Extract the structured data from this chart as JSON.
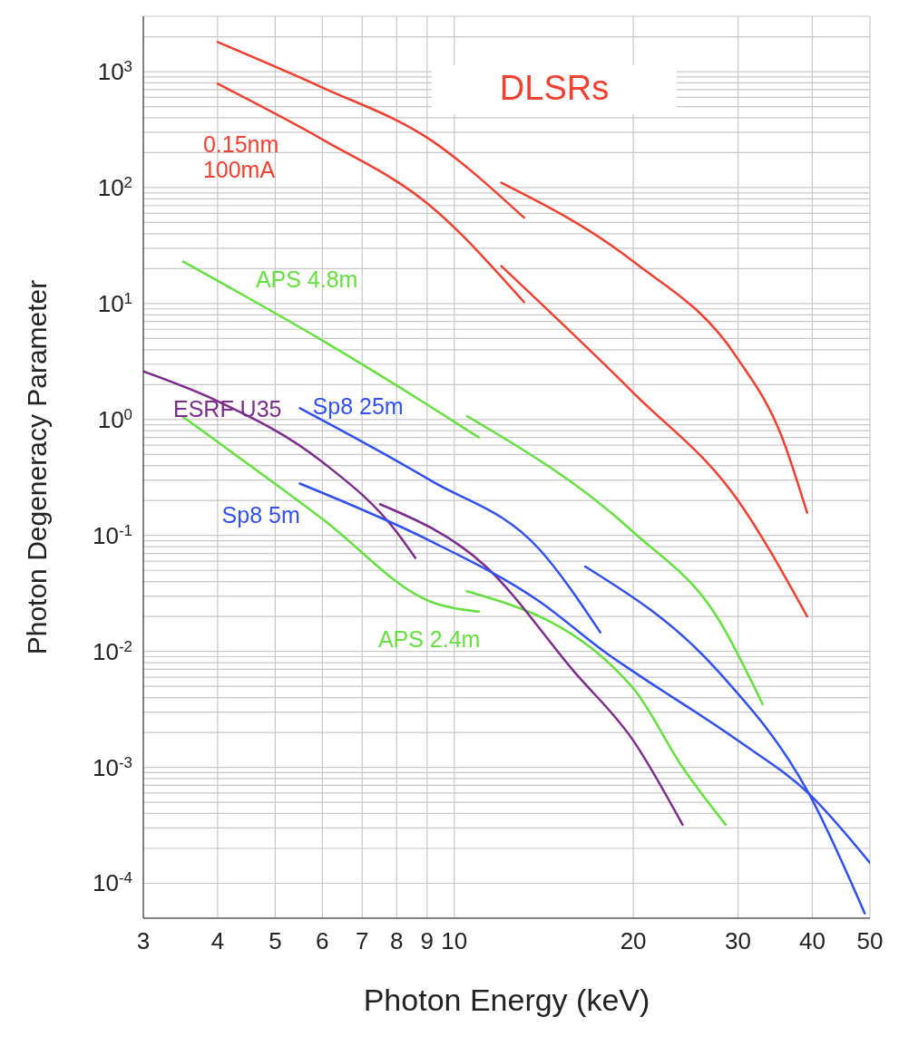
{
  "chart_data": {
    "type": "line",
    "title": "DLSRs",
    "xlabel": "Photon Energy (keV)",
    "ylabel": "Photon Degeneracy Parameter",
    "log": "xy",
    "grid": true,
    "legend": false,
    "marker": "none",
    "line_style": "solid",
    "xlim": [
      3,
      50
    ],
    "xticks": [
      3,
      4,
      5,
      6,
      7,
      8,
      9,
      10,
      20,
      30,
      40,
      50
    ],
    "ylim": [
      5e-05,
      3000
    ],
    "yticks": [
      {
        "value": 0.0001,
        "label": "10$^{-4}$"
      },
      {
        "value": 0.0002,
        "label": null
      },
      {
        "value": 0.0003,
        "label": null
      },
      {
        "value": 0.0004,
        "label": null
      },
      {
        "value": 0.0005,
        "label": null
      },
      {
        "value": 0.0006,
        "label": null
      },
      {
        "value": 0.0007,
        "label": null
      },
      {
        "value": 0.0008,
        "label": null
      },
      {
        "value": 0.0009,
        "label": null
      },
      {
        "value": 0.001,
        "label": "10$^{-3}$"
      },
      {
        "value": 0.002,
        "label": null
      },
      {
        "value": 0.003,
        "label": null
      },
      {
        "value": 0.004,
        "label": null
      },
      {
        "value": 0.005,
        "label": null
      },
      {
        "value": 0.006,
        "label": null
      },
      {
        "value": 0.007,
        "label": null
      },
      {
        "value": 0.008,
        "label": null
      },
      {
        "value": 0.009,
        "label": null
      },
      {
        "value": 0.01,
        "label": "10$^{-2}$"
      },
      {
        "value": 0.02,
        "label": null
      },
      {
        "value": 0.03,
        "label": null
      },
      {
        "value": 0.04,
        "label": null
      },
      {
        "value": 0.05,
        "label": null
      },
      {
        "value": 0.06,
        "label": null
      },
      {
        "value": 0.07,
        "label": null
      },
      {
        "value": 0.08,
        "label": null
      },
      {
        "value": 0.09,
        "label": null
      },
      {
        "value": 0.1,
        "label": "10$^{-1}$"
      },
      {
        "value": 0.2,
        "label": null
      },
      {
        "value": 0.3,
        "label": null
      },
      {
        "value": 0.4,
        "label": null
      },
      {
        "value": 0.5,
        "label": null
      },
      {
        "value": 0.6,
        "label": null
      },
      {
        "value": 0.7,
        "label": null
      },
      {
        "value": 0.8,
        "label": null
      },
      {
        "value": 0.9,
        "label": null
      },
      {
        "value": 1,
        "label": "10$^{0}$"
      },
      {
        "value": 2,
        "label": null
      },
      {
        "value": 3,
        "label": null
      },
      {
        "value": 4,
        "label": null
      },
      {
        "value": 5,
        "label": null
      },
      {
        "value": 6,
        "label": null
      },
      {
        "value": 7,
        "label": null
      },
      {
        "value": 8,
        "label": null
      },
      {
        "value": 9,
        "label": null
      },
      {
        "value": 10,
        "label": "10$^{1}$"
      },
      {
        "value": 20,
        "label": null
      },
      {
        "value": 30,
        "label": null
      },
      {
        "value": 40,
        "label": null
      },
      {
        "value": 50,
        "label": null
      },
      {
        "value": 60,
        "label": null
      },
      {
        "value": 70,
        "label": null
      },
      {
        "value": 80,
        "label": null
      },
      {
        "value": 90,
        "label": null
      },
      {
        "value": 100,
        "label": "10$^{2}$"
      },
      {
        "value": 200,
        "label": null
      },
      {
        "value": 300,
        "label": null
      },
      {
        "value": 400,
        "label": null
      },
      {
        "value": 500,
        "label": null
      },
      {
        "value": 600,
        "label": null
      },
      {
        "value": 700,
        "label": null
      },
      {
        "value": 800,
        "label": null
      },
      {
        "value": 900,
        "label": null
      },
      {
        "value": 1000,
        "label": "10$^{3}$"
      },
      {
        "value": 2000,
        "label": null
      }
    ],
    "series": [
      {
        "color": "#f04030",
        "x": [
          4,
          6,
          9.1,
          13.1
        ],
        "values": [
          1800,
          730,
          260,
          55
        ]
      },
      {
        "color": "#f04030",
        "x": [
          12,
          20,
          29.9,
          35.5,
          39.2
        ],
        "values": [
          110,
          23,
          3.4,
          0.72,
          0.157
        ]
      },
      {
        "name": "0.15nm\n100mA",
        "color": "#f04030",
        "x": [
          4,
          6,
          9.1,
          13.1
        ],
        "values": [
          785,
          260,
          70,
          10.3
        ]
      },
      {
        "color": "#f04030",
        "x": [
          12,
          20,
          30,
          39.2
        ],
        "values": [
          21,
          1.7,
          0.2,
          0.02
        ]
      },
      {
        "name": "APS 4.8m",
        "color": "#66e040",
        "x": [
          3.5,
          6,
          9.1,
          11
        ],
        "values": [
          23,
          4.8,
          1.3,
          0.7
        ]
      },
      {
        "color": "#66e040",
        "x": [
          10.5,
          20,
          27.8,
          33
        ],
        "values": [
          1.07,
          0.107,
          0.019,
          0.0035
        ]
      },
      {
        "name": "APS 2.4m",
        "color": "#66e040",
        "x": [
          3.5,
          6,
          9.1,
          11
        ],
        "values": [
          1.05,
          0.139,
          0.027,
          0.022
        ]
      },
      {
        "color": "#66e040",
        "x": [
          10.5,
          20,
          24.2,
          28.6
        ],
        "values": [
          0.033,
          0.0048,
          0.001,
          0.00032
        ]
      },
      {
        "name": "ESRF U35",
        "color": "#7b2d8b",
        "x": [
          3,
          4,
          6,
          8,
          8.6
        ],
        "values": [
          2.6,
          1.44,
          0.43,
          0.107,
          0.064
        ]
      },
      {
        "color": "#7b2d8b",
        "x": [
          7.5,
          11.3,
          15.9,
          20,
          24.2
        ],
        "values": [
          0.186,
          0.054,
          0.0067,
          0.0017,
          0.00032
        ]
      },
      {
        "name": "Sp8 25m",
        "color": "#3050f0",
        "x": [
          5.5,
          9.1,
          13.9,
          17.6
        ],
        "values": [
          1.25,
          0.3,
          0.076,
          0.0146
        ]
      },
      {
        "color": "#3050f0",
        "x": [
          16.6,
          27.8,
          39.5,
          49
        ],
        "values": [
          0.054,
          0.0067,
          0.00059,
          5.5e-05
        ]
      },
      {
        "name": "Sp8 5m",
        "color": "#3050f0",
        "x": [
          5.5,
          9.1,
          13.9,
          18.1,
          20,
          30,
          39.5,
          50
        ],
        "values": [
          0.28,
          0.09,
          0.027,
          0.0095,
          0.0067,
          0.0017,
          0.00059,
          0.00015
        ]
      }
    ]
  }
}
